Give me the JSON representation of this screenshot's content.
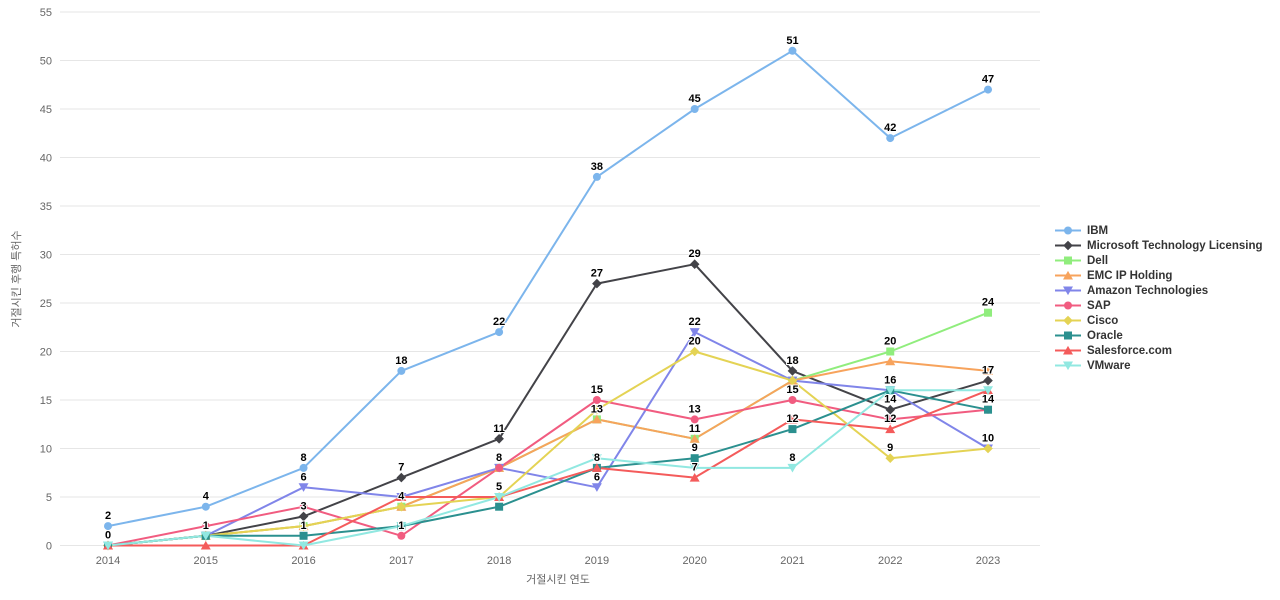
{
  "chart_data": {
    "type": "line",
    "title": "",
    "xlabel": "거절시킨 연도",
    "ylabel": "거절시킨 후행 특허수",
    "categories": [
      "2014",
      "2015",
      "2016",
      "2017",
      "2018",
      "2019",
      "2020",
      "2021",
      "2022",
      "2023"
    ],
    "y_axis": {
      "min": 0,
      "max": 55,
      "tick_step": 5,
      "ticks": [
        0,
        5,
        10,
        15,
        20,
        25,
        30,
        35,
        40,
        45,
        50,
        55
      ]
    },
    "grid": "horizontal",
    "legend_position": "right",
    "data_labels": "on, bold black, overlapping labels hidden",
    "series": [
      {
        "name": "IBM",
        "color": "#7cb5ec",
        "marker": "circle",
        "values": [
          2,
          4,
          8,
          18,
          22,
          38,
          45,
          51,
          42,
          47
        ]
      },
      {
        "name": "Microsoft Technology Licensing",
        "color": "#434348",
        "marker": "diamond",
        "values": [
          0,
          1,
          3,
          7,
          11,
          27,
          29,
          18,
          14,
          17
        ]
      },
      {
        "name": "Dell",
        "color": "#90ed7d",
        "marker": "square",
        "values": [
          0,
          1,
          2,
          4,
          8,
          13,
          11,
          17,
          20,
          24
        ]
      },
      {
        "name": "EMC IP Holding",
        "color": "#f7a35c",
        "marker": "triangle",
        "values": [
          0,
          1,
          2,
          4,
          8,
          13,
          11,
          17,
          19,
          18
        ]
      },
      {
        "name": "Amazon Technologies",
        "color": "#8085e9",
        "marker": "triangle-down",
        "values": [
          0,
          1,
          6,
          5,
          8,
          6,
          22,
          17,
          16,
          10
        ]
      },
      {
        "name": "SAP",
        "color": "#f15c80",
        "marker": "circle",
        "values": [
          0,
          2,
          4,
          1,
          8,
          15,
          13,
          15,
          13,
          14
        ]
      },
      {
        "name": "Cisco",
        "color": "#e4d354",
        "marker": "diamond",
        "values": [
          0,
          1,
          2,
          4,
          5,
          14,
          20,
          17,
          9,
          10
        ]
      },
      {
        "name": "Oracle",
        "color": "#2b908f",
        "marker": "square",
        "values": [
          0,
          1,
          1,
          2,
          4,
          8,
          9,
          12,
          16,
          14
        ]
      },
      {
        "name": "Salesforce.com",
        "color": "#f45b5b",
        "marker": "triangle",
        "values": [
          0,
          0,
          0,
          5,
          5,
          8,
          7,
          13,
          12,
          16
        ]
      },
      {
        "name": "VMware",
        "color": "#91e8e1",
        "marker": "triangle-down",
        "values": [
          0,
          1,
          0,
          2,
          5,
          9,
          8,
          8,
          16,
          16
        ]
      }
    ],
    "style": {
      "grid_color": "#e6e6e6",
      "tick_label_color": "#666666",
      "axis_title_color": "#666666",
      "data_label_color": "#000000",
      "legend_text_color": "#333333",
      "background": "#ffffff"
    }
  }
}
